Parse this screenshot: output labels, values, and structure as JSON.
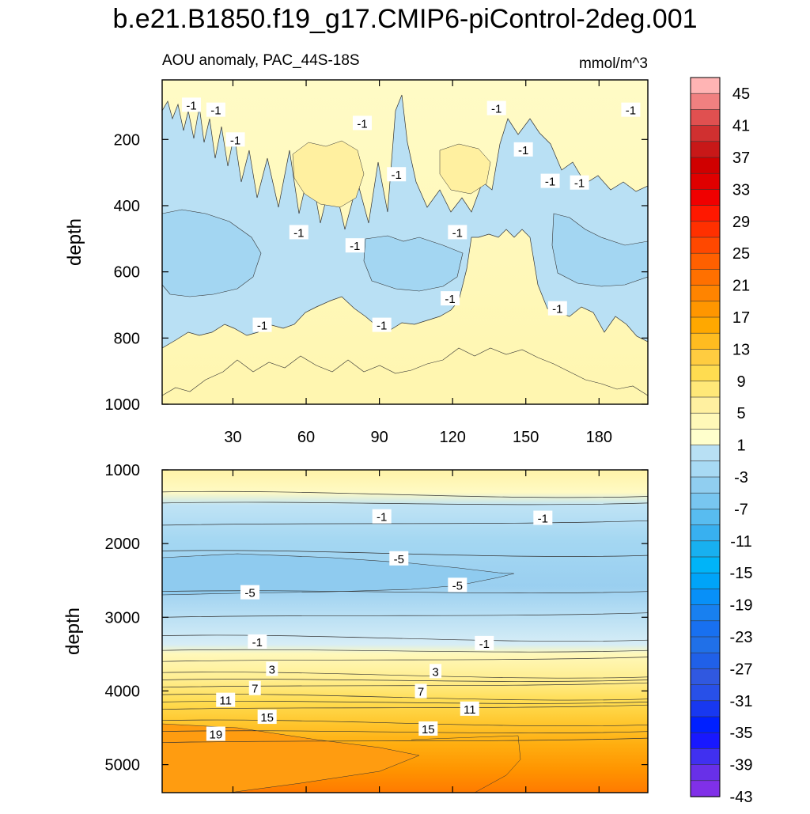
{
  "title": "b.e21.B1850.f19_g17.CMIP6-piControl-2deg.001",
  "chart_data": [
    {
      "type": "heatmap",
      "panel": "upper",
      "subtitle_left": "AOU anomaly, PAC_44S-18S",
      "subtitle_right": "mmol/m^3",
      "ylabel": "depth",
      "xlabel": "",
      "xlim": [
        1,
        200
      ],
      "ylim": [
        1000,
        20
      ],
      "x_ticks": [
        30,
        60,
        90,
        120,
        150,
        180
      ],
      "y_ticks": [
        200,
        400,
        600,
        800,
        1000
      ],
      "contour_labels": [
        {
          "text": "-1",
          "x": 13,
          "y": 95
        },
        {
          "text": "-1",
          "x": 23,
          "y": 110
        },
        {
          "text": "-1",
          "x": 31,
          "y": 200
        },
        {
          "text": "-1",
          "x": 83,
          "y": 150
        },
        {
          "text": "-1",
          "x": 97,
          "y": 305
        },
        {
          "text": "-1",
          "x": 138,
          "y": 105
        },
        {
          "text": "-1",
          "x": 149,
          "y": 230
        },
        {
          "text": "-1",
          "x": 160,
          "y": 325
        },
        {
          "text": "-1",
          "x": 172,
          "y": 330
        },
        {
          "text": "-1",
          "x": 193,
          "y": 110
        },
        {
          "text": "-1",
          "x": 57,
          "y": 480
        },
        {
          "text": "-1",
          "x": 80,
          "y": 520
        },
        {
          "text": "-1",
          "x": 122,
          "y": 480
        },
        {
          "text": "-1",
          "x": 119,
          "y": 680
        },
        {
          "text": "-1",
          "x": 42,
          "y": 760
        },
        {
          "text": "-1",
          "x": 91,
          "y": 760
        },
        {
          "text": "-1",
          "x": 163,
          "y": 710
        }
      ]
    },
    {
      "type": "heatmap",
      "panel": "lower",
      "ylabel": "depth",
      "xlabel": "",
      "xlim": [
        1,
        200
      ],
      "ylim": [
        5380,
        1000
      ],
      "y_ticks": [
        1000,
        2000,
        3000,
        4000,
        5000
      ],
      "contour_labels": [
        {
          "text": "-1",
          "x": 91,
          "y": 1630
        },
        {
          "text": "-1",
          "x": 157,
          "y": 1650
        },
        {
          "text": "-5",
          "x": 98,
          "y": 2200
        },
        {
          "text": "-5",
          "x": 37,
          "y": 2660
        },
        {
          "text": "-5",
          "x": 122,
          "y": 2560
        },
        {
          "text": "-1",
          "x": 40,
          "y": 3330
        },
        {
          "text": "-1",
          "x": 133,
          "y": 3350
        },
        {
          "text": "3",
          "x": 46,
          "y": 3700
        },
        {
          "text": "3",
          "x": 113,
          "y": 3730
        },
        {
          "text": "7",
          "x": 39,
          "y": 3960
        },
        {
          "text": "7",
          "x": 107,
          "y": 4000
        },
        {
          "text": "11",
          "x": 27,
          "y": 4120
        },
        {
          "text": "11",
          "x": 127,
          "y": 4240
        },
        {
          "text": "15",
          "x": 44,
          "y": 4350
        },
        {
          "text": "15",
          "x": 110,
          "y": 4510
        },
        {
          "text": "19",
          "x": 23,
          "y": 4580
        }
      ]
    }
  ],
  "colorbar": {
    "levels": [
      "45",
      "41",
      "37",
      "33",
      "29",
      "25",
      "21",
      "17",
      "13",
      "9",
      "5",
      "1",
      "-3",
      "-7",
      "-11",
      "-15",
      "-19",
      "-23",
      "-27",
      "-31",
      "-35",
      "-39",
      "-43"
    ],
    "colors": [
      "#FFB4B4",
      "#F08080",
      "#E05050",
      "#D03030",
      "#C81818",
      "#D00000",
      "#E00000",
      "#F00000",
      "#FF1800",
      "#FF3000",
      "#FF4800",
      "#FF6000",
      "#FF7000",
      "#FF8400",
      "#FF9600",
      "#FFA800",
      "#FFBC20",
      "#FFCC40",
      "#FFDC50",
      "#FFE878",
      "#FFF0A0",
      "#FFF8B8",
      "#FFFFCC",
      "#B8E0F4",
      "#A8DAF4",
      "#90CEF0",
      "#78C6F0",
      "#58BCF0",
      "#38B0F0",
      "#18B0F0",
      "#00B4F8",
      "#00A4F8",
      "#0890F8",
      "#1880F0",
      "#1870F0",
      "#2070E8",
      "#2060E8",
      "#3058E0",
      "#2850E8",
      "#1838F0",
      "#0020FF",
      "#1818FF",
      "#4030F0",
      "#6830E8",
      "#8030E8"
    ]
  }
}
